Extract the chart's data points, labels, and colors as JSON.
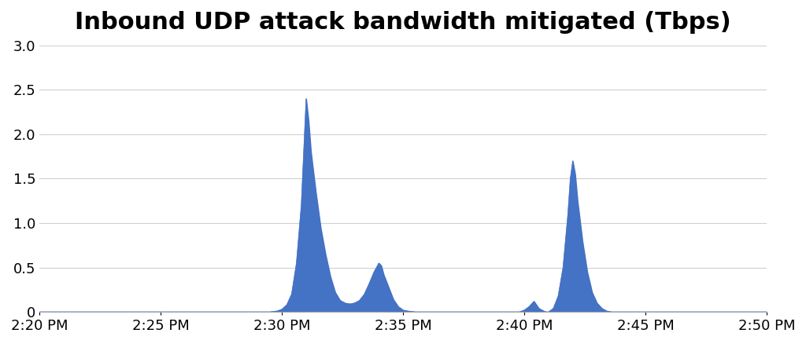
{
  "title": "Inbound UDP attack bandwidth mitigated (Tbps)",
  "title_fontsize": 22,
  "fill_color": "#4472C4",
  "line_color": "#4472C4",
  "background_color": "#ffffff",
  "grid_color": "#d0d0d0",
  "ylim": [
    0,
    3.0
  ],
  "yticks": [
    0,
    0.5,
    1.0,
    1.5,
    2.0,
    2.5,
    3.0
  ],
  "tick_fontsize": 13,
  "total_minutes": 30,
  "xtick_minutes": [
    0,
    5,
    10,
    15,
    20,
    25,
    30
  ],
  "xtick_labels": [
    "2:20 PM",
    "2:25 PM",
    "2:30 PM",
    "2:35 PM",
    "2:40 PM",
    "2:45 PM",
    "2:50 PM"
  ],
  "series": [
    {
      "t": 0.0,
      "v": 0.0
    },
    {
      "t": 9.5,
      "v": 0.0
    },
    {
      "t": 9.8,
      "v": 0.01
    },
    {
      "t": 10.0,
      "v": 0.03
    },
    {
      "t": 10.2,
      "v": 0.08
    },
    {
      "t": 10.4,
      "v": 0.2
    },
    {
      "t": 10.6,
      "v": 0.55
    },
    {
      "t": 10.8,
      "v": 1.2
    },
    {
      "t": 10.9,
      "v": 1.8
    },
    {
      "t": 10.95,
      "v": 2.1
    },
    {
      "t": 11.0,
      "v": 2.4
    },
    {
      "t": 11.1,
      "v": 2.15
    },
    {
      "t": 11.2,
      "v": 1.8
    },
    {
      "t": 11.4,
      "v": 1.35
    },
    {
      "t": 11.6,
      "v": 0.95
    },
    {
      "t": 11.8,
      "v": 0.65
    },
    {
      "t": 12.0,
      "v": 0.4
    },
    {
      "t": 12.2,
      "v": 0.22
    },
    {
      "t": 12.4,
      "v": 0.13
    },
    {
      "t": 12.6,
      "v": 0.1
    },
    {
      "t": 12.8,
      "v": 0.09
    },
    {
      "t": 13.0,
      "v": 0.1
    },
    {
      "t": 13.2,
      "v": 0.13
    },
    {
      "t": 13.4,
      "v": 0.2
    },
    {
      "t": 13.6,
      "v": 0.32
    },
    {
      "t": 13.8,
      "v": 0.45
    },
    {
      "t": 14.0,
      "v": 0.55
    },
    {
      "t": 14.1,
      "v": 0.52
    },
    {
      "t": 14.2,
      "v": 0.42
    },
    {
      "t": 14.4,
      "v": 0.28
    },
    {
      "t": 14.6,
      "v": 0.14
    },
    {
      "t": 14.8,
      "v": 0.06
    },
    {
      "t": 15.0,
      "v": 0.02
    },
    {
      "t": 15.2,
      "v": 0.01
    },
    {
      "t": 15.5,
      "v": 0.0
    },
    {
      "t": 19.8,
      "v": 0.0
    },
    {
      "t": 20.0,
      "v": 0.02
    },
    {
      "t": 20.2,
      "v": 0.06
    },
    {
      "t": 20.4,
      "v": 0.12
    },
    {
      "t": 20.5,
      "v": 0.08
    },
    {
      "t": 20.6,
      "v": 0.04
    },
    {
      "t": 20.8,
      "v": 0.01
    },
    {
      "t": 20.9,
      "v": 0.0
    },
    {
      "t": 21.0,
      "v": 0.0
    },
    {
      "t": 21.2,
      "v": 0.04
    },
    {
      "t": 21.4,
      "v": 0.18
    },
    {
      "t": 21.6,
      "v": 0.5
    },
    {
      "t": 21.8,
      "v": 1.1
    },
    {
      "t": 21.9,
      "v": 1.5
    },
    {
      "t": 22.0,
      "v": 1.7
    },
    {
      "t": 22.1,
      "v": 1.55
    },
    {
      "t": 22.2,
      "v": 1.25
    },
    {
      "t": 22.4,
      "v": 0.8
    },
    {
      "t": 22.6,
      "v": 0.45
    },
    {
      "t": 22.8,
      "v": 0.22
    },
    {
      "t": 23.0,
      "v": 0.1
    },
    {
      "t": 23.2,
      "v": 0.04
    },
    {
      "t": 23.4,
      "v": 0.01
    },
    {
      "t": 23.6,
      "v": 0.0
    },
    {
      "t": 30.0,
      "v": 0.0
    }
  ]
}
